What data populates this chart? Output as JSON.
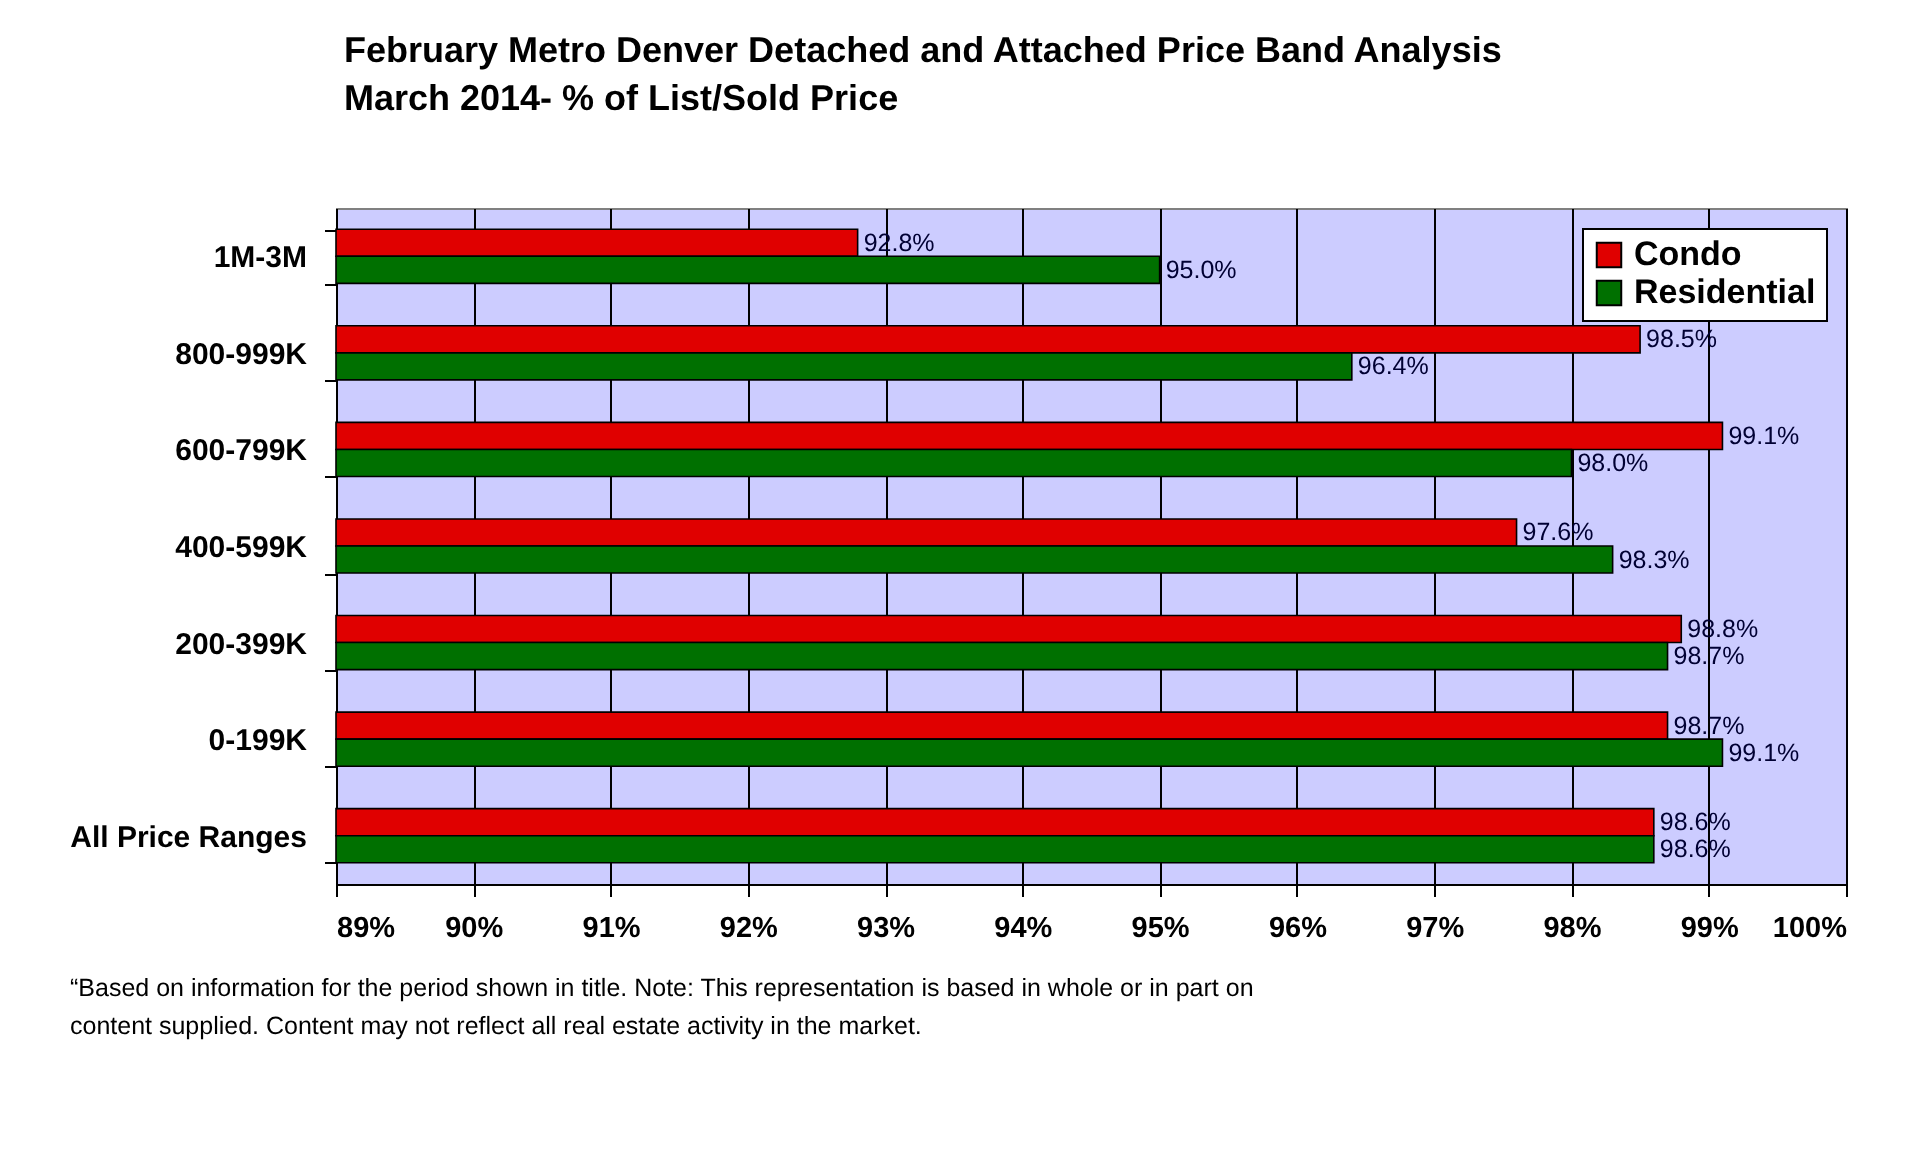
{
  "chart_data": {
    "type": "bar",
    "orientation": "horizontal",
    "title": "February Metro Denver Detached and Attached Price Band Analysis",
    "subtitle": "March 2014- % of List/Sold Price",
    "categories": [
      "1M-3M",
      "800-999K",
      "600-799K",
      "400-599K",
      "200-399K",
      "0-199K",
      "All Price Ranges"
    ],
    "series": [
      {
        "name": "Condo",
        "color": "#e00000",
        "values": [
          92.8,
          98.5,
          99.1,
          97.6,
          98.8,
          98.7,
          98.6
        ],
        "value_labels": [
          "92.8%",
          "98.5%",
          "99.1%",
          "97.6%",
          "98.8%",
          "98.7%",
          "98.6%"
        ]
      },
      {
        "name": "Residential",
        "color": "#007000",
        "values": [
          95.0,
          96.4,
          98.0,
          98.3,
          98.7,
          99.1,
          98.6
        ],
        "value_labels": [
          "95.0%",
          "96.4%",
          "98.0%",
          "98.3%",
          "98.7%",
          "99.1%",
          "98.6%"
        ]
      }
    ],
    "xlim": [
      89,
      100
    ],
    "xticks": [
      {
        "value": 89,
        "label": "89%"
      },
      {
        "value": 90,
        "label": "90%"
      },
      {
        "value": 91,
        "label": "91%"
      },
      {
        "value": 92,
        "label": "92%"
      },
      {
        "value": 93,
        "label": "93%"
      },
      {
        "value": 94,
        "label": "94%"
      },
      {
        "value": 95,
        "label": "95%"
      },
      {
        "value": 96,
        "label": "96%"
      },
      {
        "value": 97,
        "label": "97%"
      },
      {
        "value": 98,
        "label": "98%"
      },
      {
        "value": 99,
        "label": "99%"
      },
      {
        "value": 100,
        "label": "100%"
      }
    ],
    "grid": "x",
    "legend": "top right",
    "annotations": [
      "“Based on information for the period shown in title. Note: This representation is based in whole or in part on content supplied. Content may not reflect all real estate activity in the market."
    ]
  }
}
